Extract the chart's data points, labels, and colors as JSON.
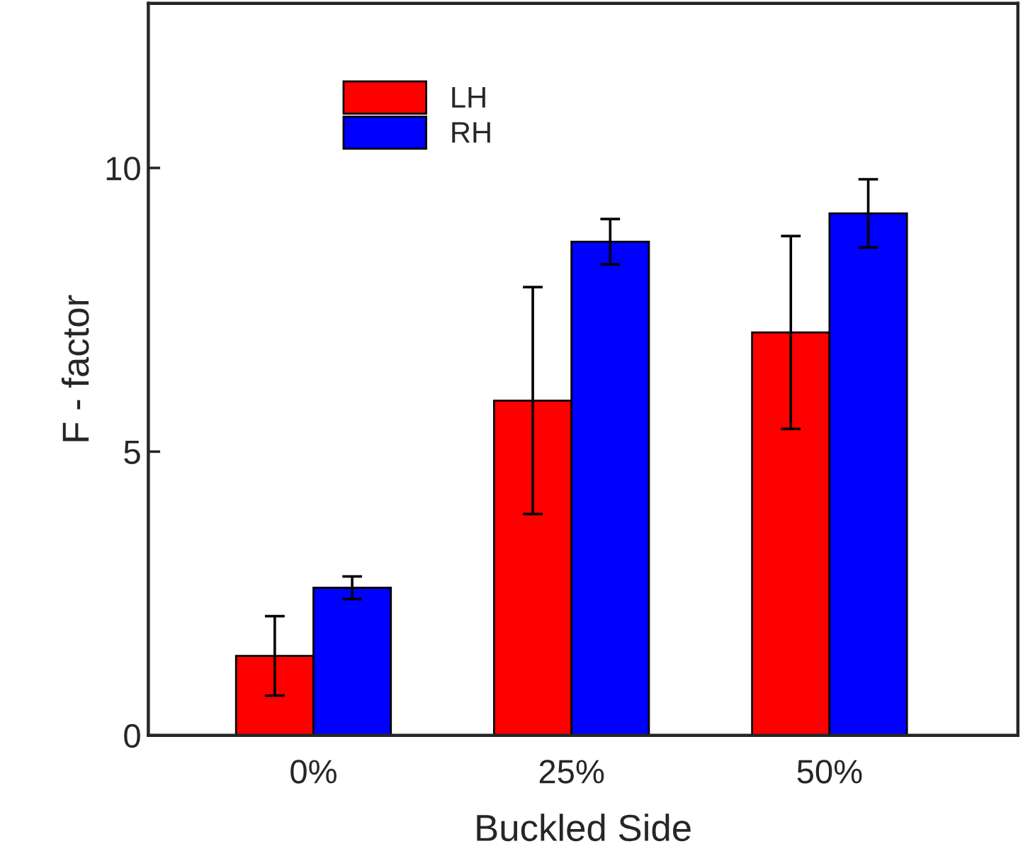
{
  "chart_data": {
    "type": "bar",
    "xlabel": "Buckled Side",
    "ylabel": "F - factor",
    "categories": [
      "0%",
      "25%",
      "50%"
    ],
    "series": [
      {
        "name": "LH",
        "color": "#ff0000",
        "values": [
          1.4,
          5.9,
          7.1
        ],
        "errors": [
          0.7,
          2.0,
          1.7
        ]
      },
      {
        "name": "RH",
        "color": "#0000ff",
        "values": [
          2.6,
          8.7,
          9.2
        ],
        "errors": [
          0.2,
          0.4,
          0.6
        ]
      }
    ],
    "ylim": [
      0,
      12.9
    ],
    "yticks": [
      0,
      5,
      10
    ],
    "grid": false,
    "legend": "top left"
  }
}
